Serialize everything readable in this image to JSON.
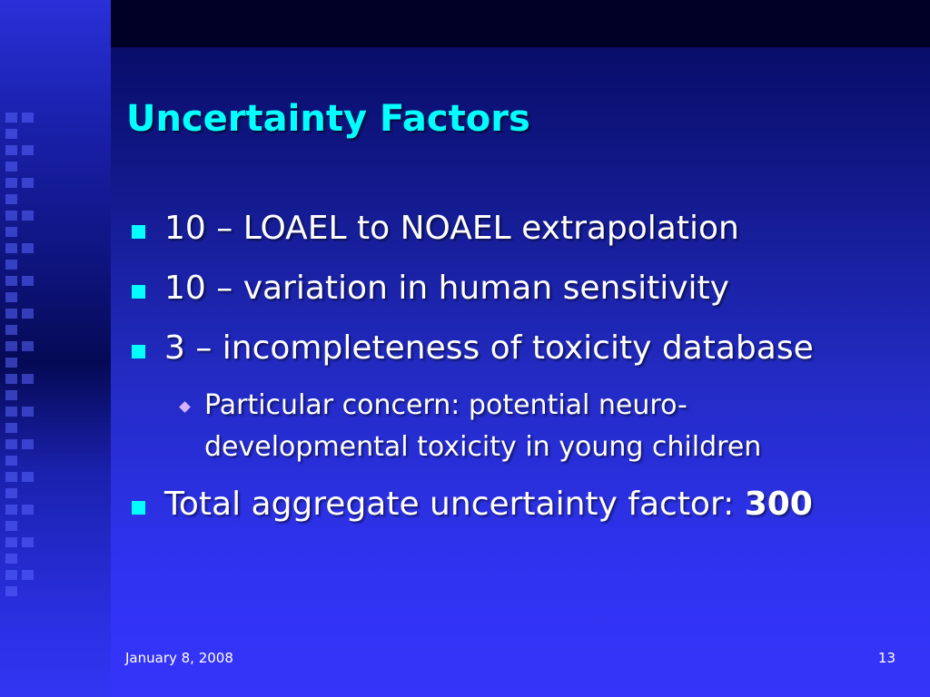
{
  "slide": {
    "title": "Uncertainty Factors",
    "bullets": [
      {
        "text": "10 – LOAEL to NOAEL extrapolation"
      },
      {
        "text": "10 – variation in human sensitivity"
      },
      {
        "text": "3 – incompleteness of toxicity database"
      }
    ],
    "sub_bullet": {
      "line1": "Particular concern: potential neuro-",
      "line2": "developmental toxicity in young children"
    },
    "total": {
      "prefix": "Total aggregate uncertainty factor: ",
      "value": "300"
    },
    "footer": {
      "date": "January 8, 2008",
      "page_number": "13"
    }
  },
  "colors": {
    "title": "#00ffff",
    "bullet_marker": "#00ffff",
    "sub_marker": "#d6b2ff",
    "text": "#ffffff",
    "background_top": "#04095e",
    "background_bottom": "#3534fa"
  },
  "icons": {
    "bullet": "square-bullet-icon",
    "sub_bullet": "diamond-bullet-icon"
  }
}
